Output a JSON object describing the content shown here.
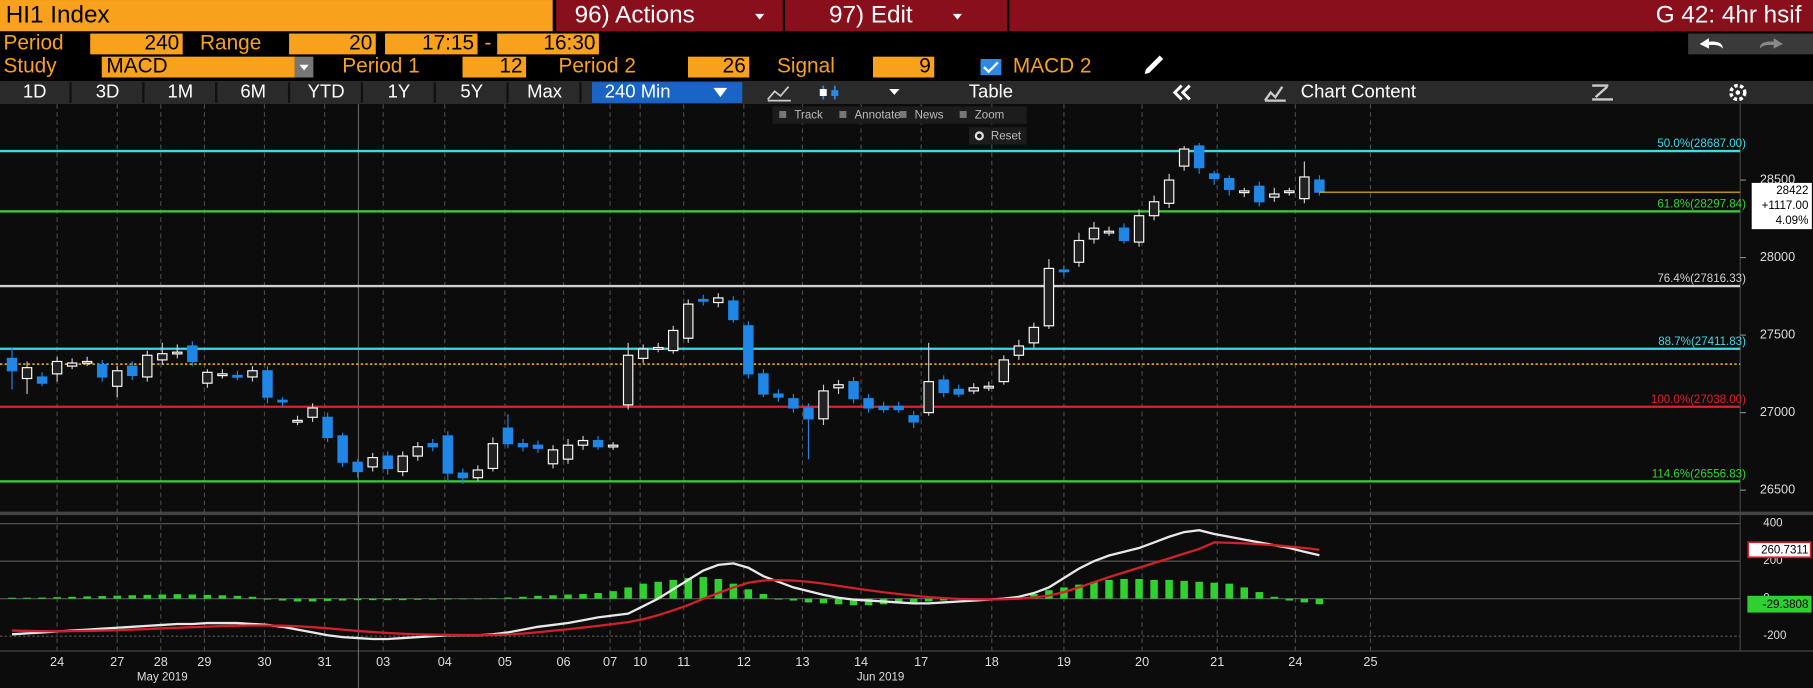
{
  "header": {
    "security": "HI1 Index",
    "actions": "96) Actions",
    "edit": "97) Edit",
    "page": "G 42: 4hr hsif"
  },
  "settings": {
    "period_label": "Period",
    "period": "240",
    "range_label": "Range",
    "range": "20",
    "start": "17:15",
    "dash": "-",
    "end": "16:30",
    "study_label": "Study",
    "study": "MACD",
    "period1_label": "Period 1",
    "period1": "12",
    "period2_label": "Period 2",
    "period2": "26",
    "signal_label": "Signal",
    "signal": "9",
    "overlay": "MACD 2"
  },
  "toolbar": {
    "ranges": [
      "1D",
      "3D",
      "1M",
      "6M",
      "YTD",
      "1Y",
      "5Y",
      "Max"
    ],
    "interval": "240 Min",
    "table": "Table",
    "chart_content": "Chart Content"
  },
  "chart_tools": {
    "items": [
      "Track",
      "Annotate",
      "News",
      "Zoom"
    ],
    "reset": "Reset"
  },
  "chart_data": [
    {
      "type": "candlestick",
      "up_color": "#ffffff",
      "down_color": "#1f86e6",
      "x": [
        0,
        1,
        2,
        3,
        4,
        5,
        6,
        7,
        8,
        9,
        10,
        11,
        12,
        13,
        14,
        15,
        16,
        17,
        18,
        19,
        20,
        21,
        22,
        23,
        24,
        25,
        26,
        27,
        28,
        29,
        30,
        31,
        32,
        33,
        34,
        35,
        36,
        37,
        38,
        39,
        40,
        41,
        42,
        43,
        44,
        45,
        46,
        47,
        48,
        49,
        50,
        51,
        52,
        53,
        54,
        55,
        56,
        57,
        58,
        59,
        60,
        61,
        62,
        63,
        64,
        65,
        66,
        67,
        68,
        69,
        70,
        71,
        72,
        73,
        74,
        75,
        76,
        77,
        78,
        79,
        80,
        81,
        82,
        83,
        84,
        85,
        86,
        87
      ],
      "open": [
        27350,
        27220,
        27230,
        27250,
        27300,
        27320,
        27310,
        27170,
        27300,
        27230,
        27340,
        27380,
        27430,
        27190,
        27250,
        27240,
        27230,
        27270,
        27080,
        26940,
        26970,
        26970,
        26850,
        26680,
        26650,
        26720,
        26620,
        26720,
        26800,
        26850,
        26610,
        26580,
        26640,
        26900,
        26800,
        26790,
        26670,
        26700,
        26790,
        26820,
        26780,
        27050,
        27350,
        27410,
        27400,
        27480,
        27730,
        27710,
        27720,
        27560,
        27250,
        27120,
        27090,
        27030,
        26960,
        27160,
        27200,
        27090,
        27040,
        27040,
        26980,
        27000,
        27210,
        27150,
        27140,
        27160,
        27200,
        27370,
        27450,
        27560,
        27920,
        27970,
        28120,
        28160,
        28190,
        28100,
        28270,
        28350,
        28590,
        28720,
        28540,
        28510,
        28420,
        28460,
        28390,
        28420,
        28380,
        28500
      ],
      "high": [
        27420,
        27330,
        27260,
        27360,
        27350,
        27360,
        27340,
        27300,
        27330,
        27400,
        27450,
        27440,
        27460,
        27280,
        27280,
        27270,
        27300,
        27300,
        27100,
        26980,
        27060,
        27000,
        26870,
        26700,
        26740,
        26750,
        26750,
        26810,
        26830,
        26880,
        26640,
        26660,
        26840,
        26990,
        26830,
        26820,
        26790,
        26830,
        26850,
        26850,
        26810,
        27450,
        27440,
        27450,
        27560,
        27730,
        27760,
        27770,
        27750,
        27590,
        27280,
        27150,
        27120,
        27060,
        27180,
        27210,
        27230,
        27120,
        27070,
        27070,
        27010,
        27450,
        27240,
        27180,
        27190,
        27200,
        27370,
        27470,
        27580,
        27990,
        27950,
        28160,
        28230,
        28200,
        28220,
        28310,
        28400,
        28540,
        28720,
        28740,
        28560,
        28530,
        28450,
        28490,
        28450,
        28450,
        28620,
        28530
      ],
      "low": [
        27150,
        27120,
        27170,
        27200,
        27280,
        27300,
        27200,
        27100,
        27210,
        27200,
        27310,
        27350,
        27300,
        27160,
        27220,
        27210,
        27200,
        27060,
        27040,
        26920,
        26940,
        26810,
        26650,
        26580,
        26620,
        26600,
        26590,
        26690,
        26750,
        26550,
        26540,
        26560,
        26620,
        26770,
        26750,
        26740,
        26640,
        26670,
        26760,
        26760,
        26760,
        27020,
        27320,
        27390,
        27380,
        27450,
        27690,
        27680,
        27580,
        27220,
        27100,
        27070,
        27000,
        26700,
        26920,
        27120,
        27060,
        27000,
        27000,
        27000,
        26900,
        26980,
        27100,
        27100,
        27120,
        27140,
        27180,
        27340,
        27420,
        27540,
        27880,
        27940,
        28090,
        28140,
        28090,
        28070,
        28240,
        28320,
        28560,
        28540,
        28470,
        28400,
        28390,
        28330,
        28360,
        28400,
        28350,
        28400
      ],
      "close": [
        27270,
        27290,
        27190,
        27330,
        27320,
        27330,
        27230,
        27270,
        27240,
        27370,
        27380,
        27390,
        27330,
        27260,
        27250,
        27230,
        27270,
        27100,
        27070,
        26950,
        27030,
        26840,
        26680,
        26620,
        26710,
        26640,
        26720,
        26780,
        26780,
        26610,
        26580,
        26630,
        26800,
        26800,
        26780,
        26770,
        26760,
        26790,
        26820,
        26780,
        26790,
        27370,
        27410,
        27420,
        27530,
        27700,
        27720,
        27740,
        27600,
        27250,
        27120,
        27100,
        27030,
        26960,
        27140,
        27180,
        27090,
        27030,
        27020,
        27020,
        26940,
        27200,
        27130,
        27120,
        27160,
        27170,
        27340,
        27430,
        27550,
        27930,
        27910,
        28110,
        28190,
        28170,
        28110,
        28270,
        28360,
        28500,
        28700,
        28580,
        28510,
        28440,
        28430,
        28360,
        28410,
        28430,
        28520,
        28422
      ],
      "xlim": [
        -0.8,
        115
      ],
      "ylim": [
        26380,
        28990
      ],
      "yticks": [
        28500,
        28000,
        27500,
        27000,
        26500
      ],
      "xticks": [
        {
          "value": 3,
          "label": "24"
        },
        {
          "value": 7,
          "label": "27"
        },
        {
          "value": 9.9,
          "label": "28"
        },
        {
          "value": 12.8,
          "label": "29"
        },
        {
          "value": 16.8,
          "label": "30"
        },
        {
          "value": 20.8,
          "label": "31"
        },
        {
          "value": 24.7,
          "label": "03"
        },
        {
          "value": 28.8,
          "label": "04"
        },
        {
          "value": 32.8,
          "label": "05"
        },
        {
          "value": 36.7,
          "label": "06"
        },
        {
          "value": 39.8,
          "label": "07"
        },
        {
          "value": 41.8,
          "label": "10"
        },
        {
          "value": 44.7,
          "label": "11"
        },
        {
          "value": 48.7,
          "label": "12"
        },
        {
          "value": 52.6,
          "label": "13"
        },
        {
          "value": 56.5,
          "label": "14"
        },
        {
          "value": 60.5,
          "label": "17"
        },
        {
          "value": 65.2,
          "label": "18"
        },
        {
          "value": 70,
          "label": "19"
        },
        {
          "value": 75.2,
          "label": "20"
        },
        {
          "value": 80.2,
          "label": "21"
        },
        {
          "value": 85.4,
          "label": "24"
        },
        {
          "value": 90.4,
          "label": "25"
        }
      ],
      "month_labels": [
        {
          "value": 10,
          "label": "May 2019"
        },
        {
          "value": 57.8,
          "label": "Jun 2019"
        }
      ],
      "levels": [
        {
          "label": "50.0%(28687.00)",
          "value": 28687,
          "color": "#3fd8e4"
        },
        {
          "label": "61.8%(28297.84)",
          "value": 28297.84,
          "color": "#35d435"
        },
        {
          "label": "76.4%(27816.33)",
          "value": 27816.33,
          "color": "#d0d0d0"
        },
        {
          "label": "88.7%(27411.83)",
          "value": 27411.83,
          "color": "#3fd8e4"
        },
        {
          "label": "100.0%(27038.00)",
          "value": 27038,
          "color": "#e0202a"
        },
        {
          "label": "114.6%(26556.83)",
          "value": 26556.83,
          "color": "#35d435"
        }
      ],
      "reference_line": {
        "value": 27313,
        "color": "#e6a400"
      },
      "last": {
        "value": 28422,
        "color": "#e6c200"
      },
      "change": {
        "value": 1117,
        "label": "+1117.00"
      },
      "change_pct": {
        "value": 4.09,
        "label": "4.09%"
      }
    },
    {
      "type": "macd",
      "xlim": [
        -0.8,
        115
      ],
      "ylim": [
        -279,
        430
      ],
      "yticks": [
        400,
        200,
        0,
        -200
      ],
      "series": [
        {
          "style": "line",
          "color": "#e8e8e8",
          "values": [
            -190,
            -185,
            -180,
            -175,
            -170,
            -165,
            -160,
            -155,
            -150,
            -145,
            -140,
            -135,
            -135,
            -130,
            -130,
            -130,
            -135,
            -140,
            -150,
            -165,
            -180,
            -195,
            -205,
            -210,
            -215,
            -215,
            -210,
            -205,
            -200,
            -195,
            -195,
            -195,
            -190,
            -180,
            -165,
            -150,
            -140,
            -130,
            -115,
            -100,
            -90,
            -80,
            -40,
            0,
            50,
            100,
            150,
            180,
            188,
            165,
            120,
            90,
            60,
            40,
            20,
            5,
            -5,
            -10,
            -15,
            -20,
            -25,
            -25,
            -20,
            -15,
            -10,
            -5,
            0,
            10,
            30,
            60,
            110,
            160,
            200,
            230,
            250,
            270,
            300,
            330,
            355,
            365,
            345,
            330,
            315,
            300,
            285,
            270,
            250,
            231.3503
          ]
        },
        {
          "style": "line",
          "color": "#d0202a",
          "values": [
            -170,
            -172,
            -173,
            -174,
            -173,
            -172,
            -170,
            -168,
            -165,
            -162,
            -158,
            -155,
            -152,
            -149,
            -146,
            -144,
            -143,
            -143,
            -144,
            -147,
            -152,
            -158,
            -165,
            -172,
            -178,
            -183,
            -187,
            -190,
            -192,
            -193,
            -194,
            -194,
            -194,
            -191,
            -186,
            -179,
            -171,
            -163,
            -154,
            -145,
            -135,
            -125,
            -110,
            -88,
            -62,
            -34,
            -1,
            30,
            60,
            85,
            97,
            99,
            96,
            90,
            80,
            68,
            56,
            45,
            34,
            25,
            16,
            8,
            3,
            -1,
            -3,
            -4,
            -3,
            0,
            6,
            16,
            35,
            60,
            88,
            115,
            140,
            165,
            190,
            215,
            240,
            265,
            300,
            298,
            295,
            290,
            285,
            278,
            270,
            260.7311
          ]
        },
        {
          "style": "bar",
          "color": "#2fd02f",
          "values": [
            5,
            5,
            6,
            8,
            10,
            12,
            14,
            16,
            18,
            20,
            22,
            24,
            22,
            20,
            18,
            15,
            10,
            -5,
            -10,
            -15,
            -15,
            -12,
            -10,
            -8,
            -8,
            -8,
            -8,
            -6,
            -5,
            -4,
            -3,
            0,
            3,
            6,
            10,
            15,
            18,
            22,
            25,
            30,
            40,
            60,
            80,
            90,
            100,
            110,
            115,
            105,
            80,
            50,
            25,
            -5,
            -10,
            -20,
            -25,
            -30,
            -35,
            -35,
            -30,
            -25,
            -20,
            -15,
            -10,
            -5,
            -3,
            0,
            3,
            10,
            25,
            45,
            60,
            75,
            90,
            100,
            105,
            105,
            100,
            100,
            95,
            90,
            85,
            80,
            60,
            35,
            10,
            -10,
            -20,
            -29.3808
          ]
        }
      ]
    }
  ]
}
